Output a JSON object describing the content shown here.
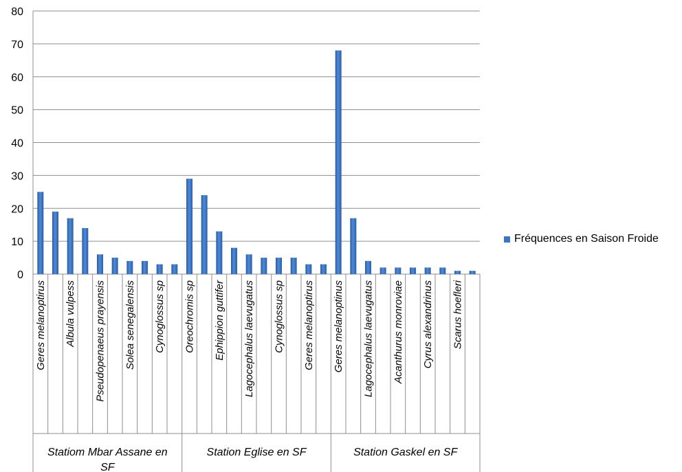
{
  "chart_data": {
    "type": "bar",
    "ylim": [
      0,
      80
    ],
    "yticks": [
      0,
      10,
      20,
      30,
      40,
      50,
      60,
      70,
      80
    ],
    "grid": true,
    "legend_position": "right",
    "bar_color": "#3d74c2",
    "groups": [
      {
        "label": "Statiom Mbar Assane en SF",
        "categories": [
          {
            "label": "Geres melanoptirus",
            "values": [
              25,
              19
            ]
          },
          {
            "label": "Albula vulpess",
            "values": [
              17,
              14
            ]
          },
          {
            "label": "Pseudopenaeus prayensis",
            "values": [
              6,
              5
            ]
          },
          {
            "label": "Solea senegalensis",
            "values": [
              4,
              4
            ]
          },
          {
            "label": "Cynoglossus sp",
            "values": [
              3,
              3
            ]
          }
        ]
      },
      {
        "label": "Station Eglise en SF",
        "categories": [
          {
            "label": "Oreochromis sp",
            "values": [
              29,
              24
            ]
          },
          {
            "label": "Ephippion guttifer",
            "values": [
              13,
              8
            ]
          },
          {
            "label": "Lagocephalus laevugatus",
            "values": [
              6,
              5
            ]
          },
          {
            "label": "Cynoglossus sp",
            "values": [
              5,
              5
            ]
          },
          {
            "label": "Geres melanoptirus",
            "values": [
              3,
              3
            ]
          }
        ]
      },
      {
        "label": "Station Gaskel en SF",
        "categories": [
          {
            "label": "Geres melanoptinus",
            "values": [
              68,
              17
            ]
          },
          {
            "label": "Lagocephalus laevugatus",
            "values": [
              4,
              2
            ]
          },
          {
            "label": "Acanthurus monroviae",
            "values": [
              2,
              2
            ]
          },
          {
            "label": "Cyrus alexandrinus",
            "values": [
              2,
              2
            ]
          },
          {
            "label": "Scarus hoefleri",
            "values": [
              1,
              1
            ]
          }
        ]
      }
    ],
    "series": [
      {
        "name": "Fréquences en Saison Froide"
      }
    ]
  }
}
